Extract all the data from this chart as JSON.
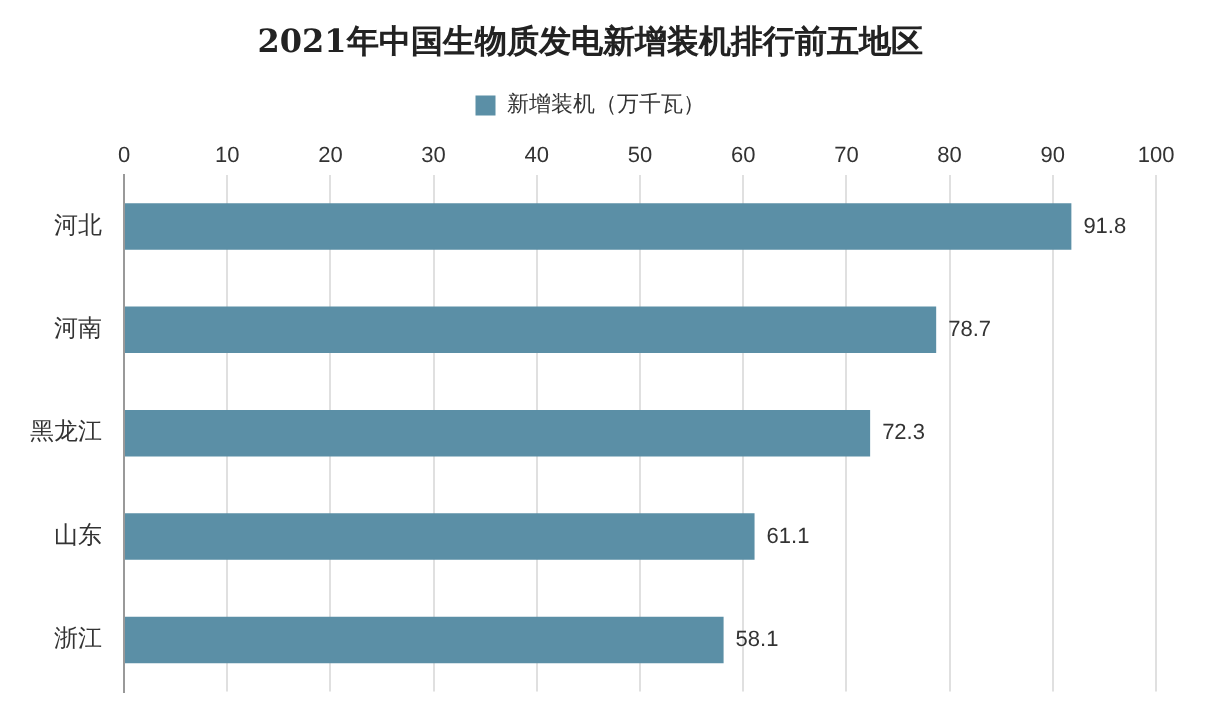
{
  "chart_data": {
    "type": "bar",
    "orientation": "horizontal",
    "title": "2021年中国生物质发电新增装机排行前五地区",
    "categories": [
      "河北",
      "河南",
      "黑龙江",
      "山东",
      "浙江"
    ],
    "series": [
      {
        "name": "新增装机（万千瓦）",
        "color": "#5b8fa6",
        "values": [
          91.8,
          78.7,
          72.3,
          61.1,
          58.1
        ]
      }
    ],
    "xlim": [
      0,
      100
    ],
    "xticks": [
      0,
      10,
      20,
      30,
      40,
      50,
      60,
      70,
      80,
      90,
      100
    ],
    "grid": "x",
    "legend": "top",
    "data_labels": true
  }
}
